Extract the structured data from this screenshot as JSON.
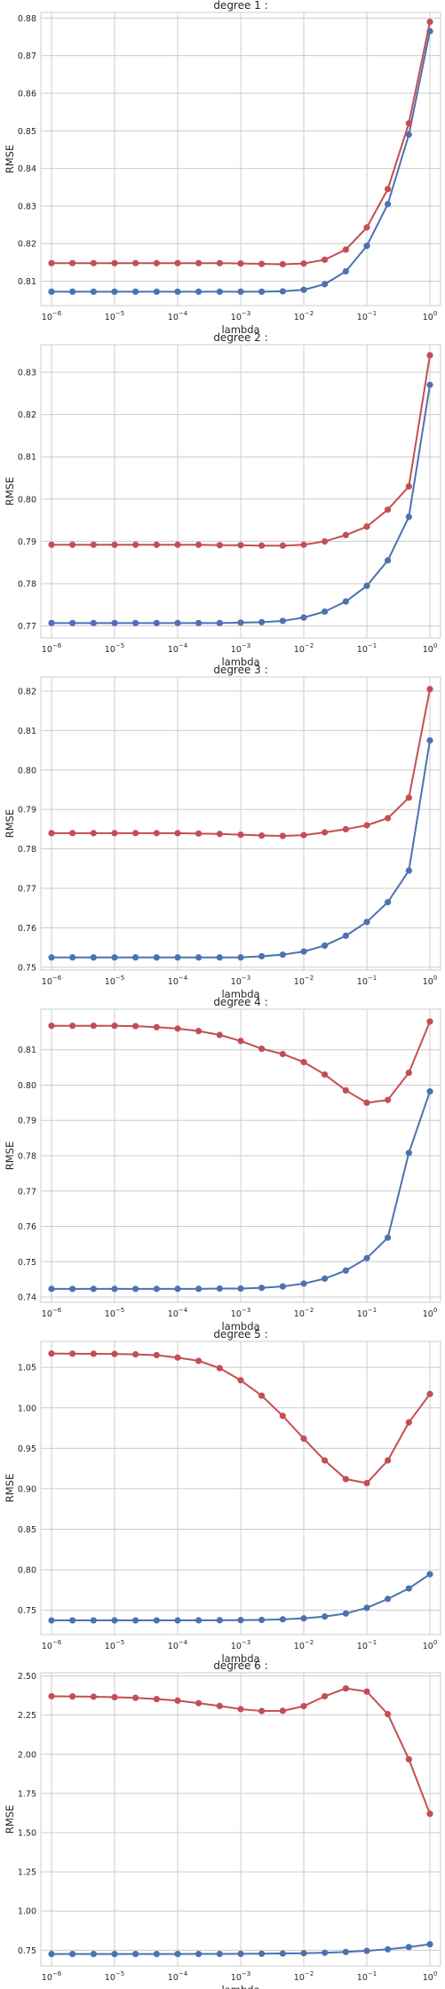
{
  "colors": {
    "blue": "#4c72b0",
    "red": "#c44e52",
    "grid": "#cccccc",
    "frame": "#cccccc",
    "text": "#262626"
  },
  "chart_data": [
    {
      "type": "line",
      "title": "degree 1 :",
      "xlabel": "lambda",
      "ylabel": "RMSE",
      "x_scale": "log",
      "x": [
        1e-06,
        2.15e-06,
        4.64e-06,
        1e-05,
        2.15e-05,
        4.64e-05,
        0.0001,
        0.000215,
        0.000464,
        0.001,
        0.00215,
        0.00464,
        0.01,
        0.0215,
        0.0464,
        0.1,
        0.215,
        0.464,
        1
      ],
      "xticks": [
        {
          "base": "10",
          "exp": "−6"
        },
        {
          "base": "10",
          "exp": "−5"
        },
        {
          "base": "10",
          "exp": "−4"
        },
        {
          "base": "10",
          "exp": "−3"
        },
        {
          "base": "10",
          "exp": "−2"
        },
        {
          "base": "10",
          "exp": "−1"
        },
        {
          "base": "10",
          "exp": "0"
        }
      ],
      "yticks": [
        "0.81",
        "0.82",
        "0.83",
        "0.84",
        "0.85",
        "0.86",
        "0.87",
        "0.88"
      ],
      "ylim": [
        0.8035,
        0.8815
      ],
      "grid": true,
      "series": [
        {
          "color": "blue",
          "values": [
            0.8072,
            0.8072,
            0.8072,
            0.8072,
            0.8072,
            0.8072,
            0.8072,
            0.8072,
            0.8072,
            0.8072,
            0.8072,
            0.8073,
            0.8077,
            0.8092,
            0.8126,
            0.8194,
            0.8305,
            0.849,
            0.8765
          ]
        },
        {
          "color": "red",
          "values": [
            0.8148,
            0.8148,
            0.8148,
            0.8148,
            0.8148,
            0.8148,
            0.8148,
            0.8148,
            0.8148,
            0.8147,
            0.8146,
            0.8145,
            0.8147,
            0.8157,
            0.8184,
            0.8243,
            0.8345,
            0.852,
            0.879
          ]
        }
      ]
    },
    {
      "type": "line",
      "title": "degree 2 :",
      "xlabel": "lambda",
      "ylabel": "RMSE",
      "x_scale": "log",
      "x": [
        1e-06,
        2.15e-06,
        4.64e-06,
        1e-05,
        2.15e-05,
        4.64e-05,
        0.0001,
        0.000215,
        0.000464,
        0.001,
        0.00215,
        0.00464,
        0.01,
        0.0215,
        0.0464,
        0.1,
        0.215,
        0.464,
        1
      ],
      "xticks": [
        {
          "base": "10",
          "exp": "−6"
        },
        {
          "base": "10",
          "exp": "−5"
        },
        {
          "base": "10",
          "exp": "−4"
        },
        {
          "base": "10",
          "exp": "−3"
        },
        {
          "base": "10",
          "exp": "−2"
        },
        {
          "base": "10",
          "exp": "−1"
        },
        {
          "base": "10",
          "exp": "0"
        }
      ],
      "yticks": [
        "0.77",
        "0.78",
        "0.79",
        "0.80",
        "0.81",
        "0.82",
        "0.83"
      ],
      "ylim": [
        0.7672,
        0.8365
      ],
      "grid": true,
      "series": [
        {
          "color": "blue",
          "values": [
            0.7707,
            0.7707,
            0.7707,
            0.7707,
            0.7707,
            0.7707,
            0.7707,
            0.7707,
            0.7707,
            0.7708,
            0.7709,
            0.7712,
            0.772,
            0.7734,
            0.7758,
            0.7795,
            0.7855,
            0.7958,
            0.827
          ]
        },
        {
          "color": "red",
          "values": [
            0.7892,
            0.7892,
            0.7892,
            0.7892,
            0.7892,
            0.7892,
            0.7892,
            0.7892,
            0.7891,
            0.7891,
            0.789,
            0.789,
            0.7892,
            0.79,
            0.7915,
            0.7935,
            0.7975,
            0.803,
            0.834
          ]
        }
      ]
    },
    {
      "type": "line",
      "title": "degree 3 :",
      "xlabel": "lambda",
      "ylabel": "RMSE",
      "x_scale": "log",
      "x": [
        1e-06,
        2.15e-06,
        4.64e-06,
        1e-05,
        2.15e-05,
        4.64e-05,
        0.0001,
        0.000215,
        0.000464,
        0.001,
        0.00215,
        0.00464,
        0.01,
        0.0215,
        0.0464,
        0.1,
        0.215,
        0.464,
        1
      ],
      "xticks": [
        {
          "base": "10",
          "exp": "−6"
        },
        {
          "base": "10",
          "exp": "−5"
        },
        {
          "base": "10",
          "exp": "−4"
        },
        {
          "base": "10",
          "exp": "−3"
        },
        {
          "base": "10",
          "exp": "−2"
        },
        {
          "base": "10",
          "exp": "−1"
        },
        {
          "base": "10",
          "exp": "0"
        }
      ],
      "yticks": [
        "0.75",
        "0.76",
        "0.77",
        "0.78",
        "0.79",
        "0.80",
        "0.81",
        "0.82"
      ],
      "ylim": [
        0.7493,
        0.8236
      ],
      "grid": true,
      "series": [
        {
          "color": "blue",
          "values": [
            0.7525,
            0.7525,
            0.7525,
            0.7525,
            0.7525,
            0.7525,
            0.7525,
            0.7525,
            0.7525,
            0.7525,
            0.7528,
            0.7532,
            0.754,
            0.7555,
            0.758,
            0.7615,
            0.7665,
            0.7745,
            0.8075
          ]
        },
        {
          "color": "red",
          "values": [
            0.784,
            0.784,
            0.784,
            0.784,
            0.784,
            0.784,
            0.784,
            0.7839,
            0.7838,
            0.7836,
            0.7834,
            0.7833,
            0.7835,
            0.7842,
            0.785,
            0.786,
            0.7878,
            0.793,
            0.8205
          ]
        }
      ]
    },
    {
      "type": "line",
      "title": "degree 4 :",
      "xlabel": "lambda",
      "ylabel": "RMSE",
      "x_scale": "log",
      "x": [
        1e-06,
        2.15e-06,
        4.64e-06,
        1e-05,
        2.15e-05,
        4.64e-05,
        0.0001,
        0.000215,
        0.000464,
        0.001,
        0.00215,
        0.00464,
        0.01,
        0.0215,
        0.0464,
        0.1,
        0.215,
        0.464,
        1
      ],
      "xticks": [
        {
          "base": "10",
          "exp": "−6"
        },
        {
          "base": "10",
          "exp": "−5"
        },
        {
          "base": "10",
          "exp": "−4"
        },
        {
          "base": "10",
          "exp": "−3"
        },
        {
          "base": "10",
          "exp": "−2"
        },
        {
          "base": "10",
          "exp": "−1"
        },
        {
          "base": "10",
          "exp": "0"
        }
      ],
      "yticks": [
        "0.74",
        "0.75",
        "0.76",
        "0.77",
        "0.78",
        "0.79",
        "0.80",
        "0.81"
      ],
      "ylim": [
        0.7385,
        0.8215
      ],
      "grid": true,
      "series": [
        {
          "color": "blue",
          "values": [
            0.7423,
            0.7423,
            0.7423,
            0.7423,
            0.7423,
            0.7423,
            0.7423,
            0.7423,
            0.7424,
            0.7424,
            0.7426,
            0.743,
            0.7438,
            0.7452,
            0.7475,
            0.751,
            0.7568,
            0.7808,
            0.7982
          ]
        },
        {
          "color": "red",
          "values": [
            0.8168,
            0.8168,
            0.8168,
            0.8168,
            0.8167,
            0.8164,
            0.816,
            0.8153,
            0.8142,
            0.8125,
            0.8103,
            0.8088,
            0.8065,
            0.803,
            0.7985,
            0.795,
            0.7958,
            0.8035,
            0.818
          ]
        }
      ]
    },
    {
      "type": "line",
      "title": "degree 5 :",
      "xlabel": "lambda",
      "ylabel": "RMSE",
      "x_scale": "log",
      "x": [
        1e-06,
        2.15e-06,
        4.64e-06,
        1e-05,
        2.15e-05,
        4.64e-05,
        0.0001,
        0.000215,
        0.000464,
        0.001,
        0.00215,
        0.00464,
        0.01,
        0.0215,
        0.0464,
        0.1,
        0.215,
        0.464,
        1
      ],
      "xticks": [
        {
          "base": "10",
          "exp": "−6"
        },
        {
          "base": "10",
          "exp": "−5"
        },
        {
          "base": "10",
          "exp": "−4"
        },
        {
          "base": "10",
          "exp": "−3"
        },
        {
          "base": "10",
          "exp": "−2"
        },
        {
          "base": "10",
          "exp": "−1"
        },
        {
          "base": "10",
          "exp": "0"
        }
      ],
      "yticks": [
        "0.75",
        "0.80",
        "0.85",
        "0.90",
        "0.95",
        "1.00",
        "1.05"
      ],
      "ylim": [
        0.72,
        1.082
      ],
      "grid": true,
      "series": [
        {
          "color": "blue",
          "values": [
            0.7375,
            0.7375,
            0.7375,
            0.7375,
            0.7375,
            0.7375,
            0.7375,
            0.7376,
            0.7377,
            0.7378,
            0.7381,
            0.7388,
            0.74,
            0.7422,
            0.746,
            0.753,
            0.764,
            0.777,
            0.7945
          ]
        },
        {
          "color": "red",
          "values": [
            1.067,
            1.0668,
            1.0667,
            1.0665,
            1.066,
            1.065,
            1.062,
            1.058,
            1.049,
            1.034,
            1.015,
            0.99,
            0.962,
            0.935,
            0.912,
            0.907,
            0.935,
            0.982,
            1.017
          ]
        }
      ]
    },
    {
      "type": "line",
      "title": "degree 6 :",
      "xlabel": "lambda",
      "ylabel": "RMSE",
      "x_scale": "log",
      "x": [
        1e-06,
        2.15e-06,
        4.64e-06,
        1e-05,
        2.15e-05,
        4.64e-05,
        0.0001,
        0.000215,
        0.000464,
        0.001,
        0.00215,
        0.00464,
        0.01,
        0.0215,
        0.0464,
        0.1,
        0.215,
        0.464,
        1
      ],
      "xticks": [
        {
          "base": "10",
          "exp": "−6"
        },
        {
          "base": "10",
          "exp": "−5"
        },
        {
          "base": "10",
          "exp": "−4"
        },
        {
          "base": "10",
          "exp": "−3"
        },
        {
          "base": "10",
          "exp": "−2"
        },
        {
          "base": "10",
          "exp": "−1"
        },
        {
          "base": "10",
          "exp": "0"
        }
      ],
      "yticks": [
        "0.75",
        "1.00",
        "1.25",
        "1.50",
        "1.75",
        "2.00",
        "2.25",
        "2.50"
      ],
      "ylim": [
        0.65,
        2.52
      ],
      "grid": true,
      "series": [
        {
          "color": "blue",
          "values": [
            0.726,
            0.726,
            0.726,
            0.726,
            0.726,
            0.726,
            0.726,
            0.7262,
            0.7265,
            0.727,
            0.7278,
            0.729,
            0.731,
            0.734,
            0.739,
            0.746,
            0.756,
            0.77,
            0.788
          ]
        },
        {
          "color": "red",
          "values": [
            2.37,
            2.369,
            2.367,
            2.364,
            2.36,
            2.352,
            2.342,
            2.326,
            2.308,
            2.288,
            2.276,
            2.277,
            2.307,
            2.37,
            2.42,
            2.4,
            2.256,
            1.968,
            1.62
          ]
        }
      ]
    }
  ]
}
